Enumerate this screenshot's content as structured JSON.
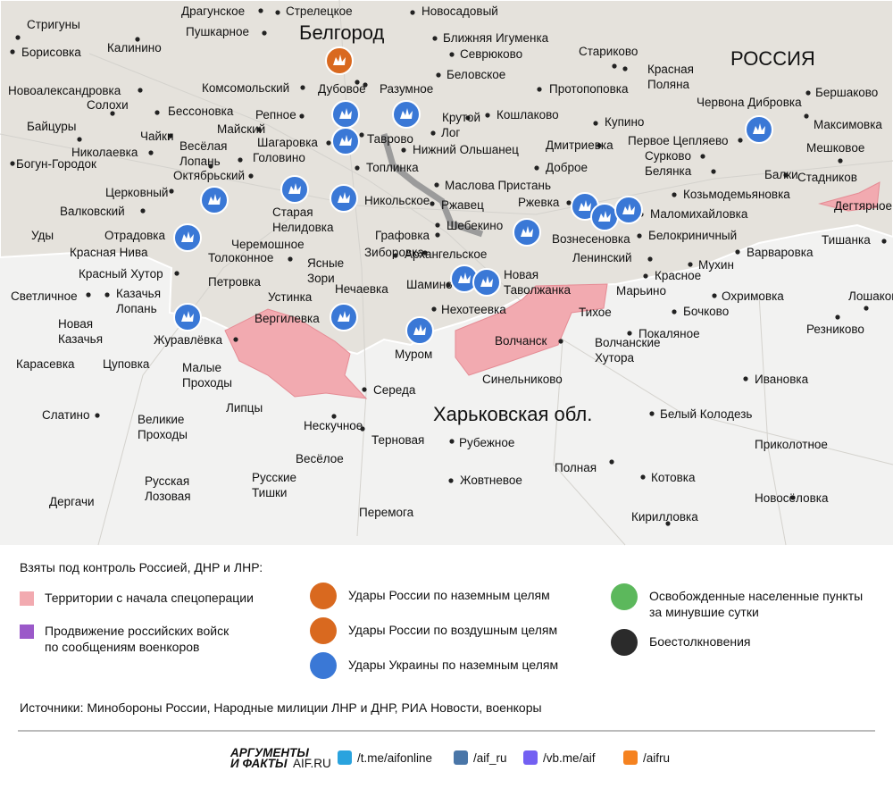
{
  "map": {
    "city_title": "Белгород",
    "country": "РОССИЯ",
    "region": "Харьковская обл.",
    "places": [
      [
        "Драгунское"
      ],
      [
        "Стрелецкое"
      ],
      [
        "Новосадовый"
      ],
      [
        "Стригуны"
      ],
      [
        "Пушкарное"
      ],
      [
        "Ближняя Игуменка"
      ],
      [
        "Борисовка"
      ],
      [
        "Калинино"
      ],
      [
        "Севрюково"
      ],
      [
        "Стариково"
      ],
      [
        "Красная",
        "Поляна"
      ],
      [
        "Беловское"
      ],
      [
        "Протопоповка"
      ],
      [
        "Дубовое"
      ],
      [
        "Разумное"
      ],
      [
        "Комсомольский"
      ],
      [
        "Новоалександровка"
      ],
      [
        "Солохи"
      ],
      [
        "Бершаково"
      ],
      [
        "Бессоновка"
      ],
      [
        "Репное"
      ],
      [
        "Крутой"
      ],
      [
        "Кошлаково"
      ],
      [
        "Червона Дибровка"
      ],
      [
        "Максимовка"
      ],
      [
        "Купино"
      ],
      [
        "Байцуры"
      ],
      [
        "Майский"
      ],
      [
        "Чайки"
      ],
      [
        "Лог"
      ],
      [
        "Весёлая",
        "Лопань"
      ],
      [
        "Шагаровка"
      ],
      [
        "Таврово"
      ],
      [
        "Первое Цепляево"
      ],
      [
        "Дмитриевка"
      ],
      [
        "Николаевка"
      ],
      [
        "Нижний Ольшанец"
      ],
      [
        "Мешковое"
      ],
      [
        "Головино"
      ],
      [
        "Сурково"
      ],
      [
        "Богун-Городок"
      ],
      [
        "Октябрьский"
      ],
      [
        "Топлинка"
      ],
      [
        "Доброе"
      ],
      [
        "Белянка"
      ],
      [
        "Балки"
      ],
      [
        "Стадников"
      ],
      [
        "Маслова Пристань"
      ],
      [
        "Церковный"
      ],
      [
        "Никольское"
      ],
      [
        "Ржавец"
      ],
      [
        "Козьмодемьяновка"
      ],
      [
        "Дегтярное"
      ],
      [
        "Ржевка"
      ],
      [
        "Старая",
        "Нелидовка"
      ],
      [
        "Валковский"
      ],
      [
        "Маломихайловка"
      ],
      [
        "Шебекино"
      ],
      [
        "Вознесеновка"
      ],
      [
        "Уды"
      ],
      [
        "Отрадовка"
      ],
      [
        "Белокриничный"
      ],
      [
        "Тишанка"
      ],
      [
        "Графовка"
      ],
      [
        "Черемошное"
      ],
      [
        "Красная Нива"
      ],
      [
        "Варваровка"
      ],
      [
        "Зиборовка"
      ],
      [
        "Архангельское"
      ],
      [
        "Толоконное"
      ],
      [
        "Ленинский"
      ],
      [
        "Мухин"
      ],
      [
        "Красный Хутор"
      ],
      [
        "Ясные",
        "Зори"
      ],
      [
        "Петровка"
      ],
      [
        "Новая",
        "Таволжанка"
      ],
      [
        "Красное"
      ],
      [
        "Марьино"
      ],
      [
        "Шамино"
      ],
      [
        "Нечаевка"
      ],
      [
        "Светличное"
      ],
      [
        "Казачья",
        "Лопань"
      ],
      [
        "Устинка"
      ],
      [
        "Охримовка"
      ],
      [
        "Лошаково"
      ],
      [
        "Нехотеевка"
      ],
      [
        "Тихое"
      ],
      [
        "Бочково"
      ],
      [
        "Вергилевка"
      ],
      [
        "Журавлёвка"
      ],
      [
        "Новая",
        "Казачья"
      ],
      [
        "Резниково"
      ],
      [
        "Покаляное"
      ],
      [
        "Волчанск"
      ],
      [
        "Волчанские",
        "Хутора"
      ],
      [
        "Муром"
      ],
      [
        "Карасевка"
      ],
      [
        "Цуповка"
      ],
      [
        "Малые",
        "Проходы"
      ],
      [
        "Синельниково"
      ],
      [
        "Ивановка"
      ],
      [
        "Середа"
      ],
      [
        "Белый Колодезь"
      ],
      [
        "Липцы"
      ],
      [
        "Слатино"
      ],
      [
        "Великие",
        "Проходы"
      ],
      [
        "Нескучное"
      ],
      [
        "Терновая"
      ],
      [
        "Рубежное"
      ],
      [
        "Приколотное"
      ],
      [
        "Весёлое"
      ],
      [
        "Полная"
      ],
      [
        "Котовка"
      ],
      [
        "Русская",
        "Лозовая"
      ],
      [
        "Русские",
        "Тишки"
      ],
      [
        "Жовтневое"
      ],
      [
        "Новосёловка"
      ],
      [
        "Дергачи"
      ],
      [
        "Перемога"
      ],
      [
        "Кирилловка"
      ]
    ]
  },
  "legend": {
    "title": "Взяты под контроль Россией, ДНР и ЛНР:",
    "items": [
      [
        "Территории с начала спецоперации"
      ],
      [
        "Продвижение российских войск",
        "по сообщениям военкоров"
      ],
      [
        "Удары России по наземным целям"
      ],
      [
        "Удары России по воздушным целям"
      ],
      [
        "Удары Украины по наземным целям"
      ],
      [
        "Освобожденные населенные пункты",
        "за минувшие сутки"
      ],
      [
        "Боестолкновения"
      ]
    ]
  },
  "sources": "Источники: Минобороны России, Народные милиции ЛНР и ДНР, РИА Новости, военкоры",
  "footer": {
    "logo": [
      "АРГУМЕНТЫ",
      "И ФАКТЫ",
      "AIF.RU"
    ],
    "links": [
      "/t.me/aifonline",
      "/aif_ru",
      "/vb.me/aif",
      "/aifru"
    ]
  }
}
